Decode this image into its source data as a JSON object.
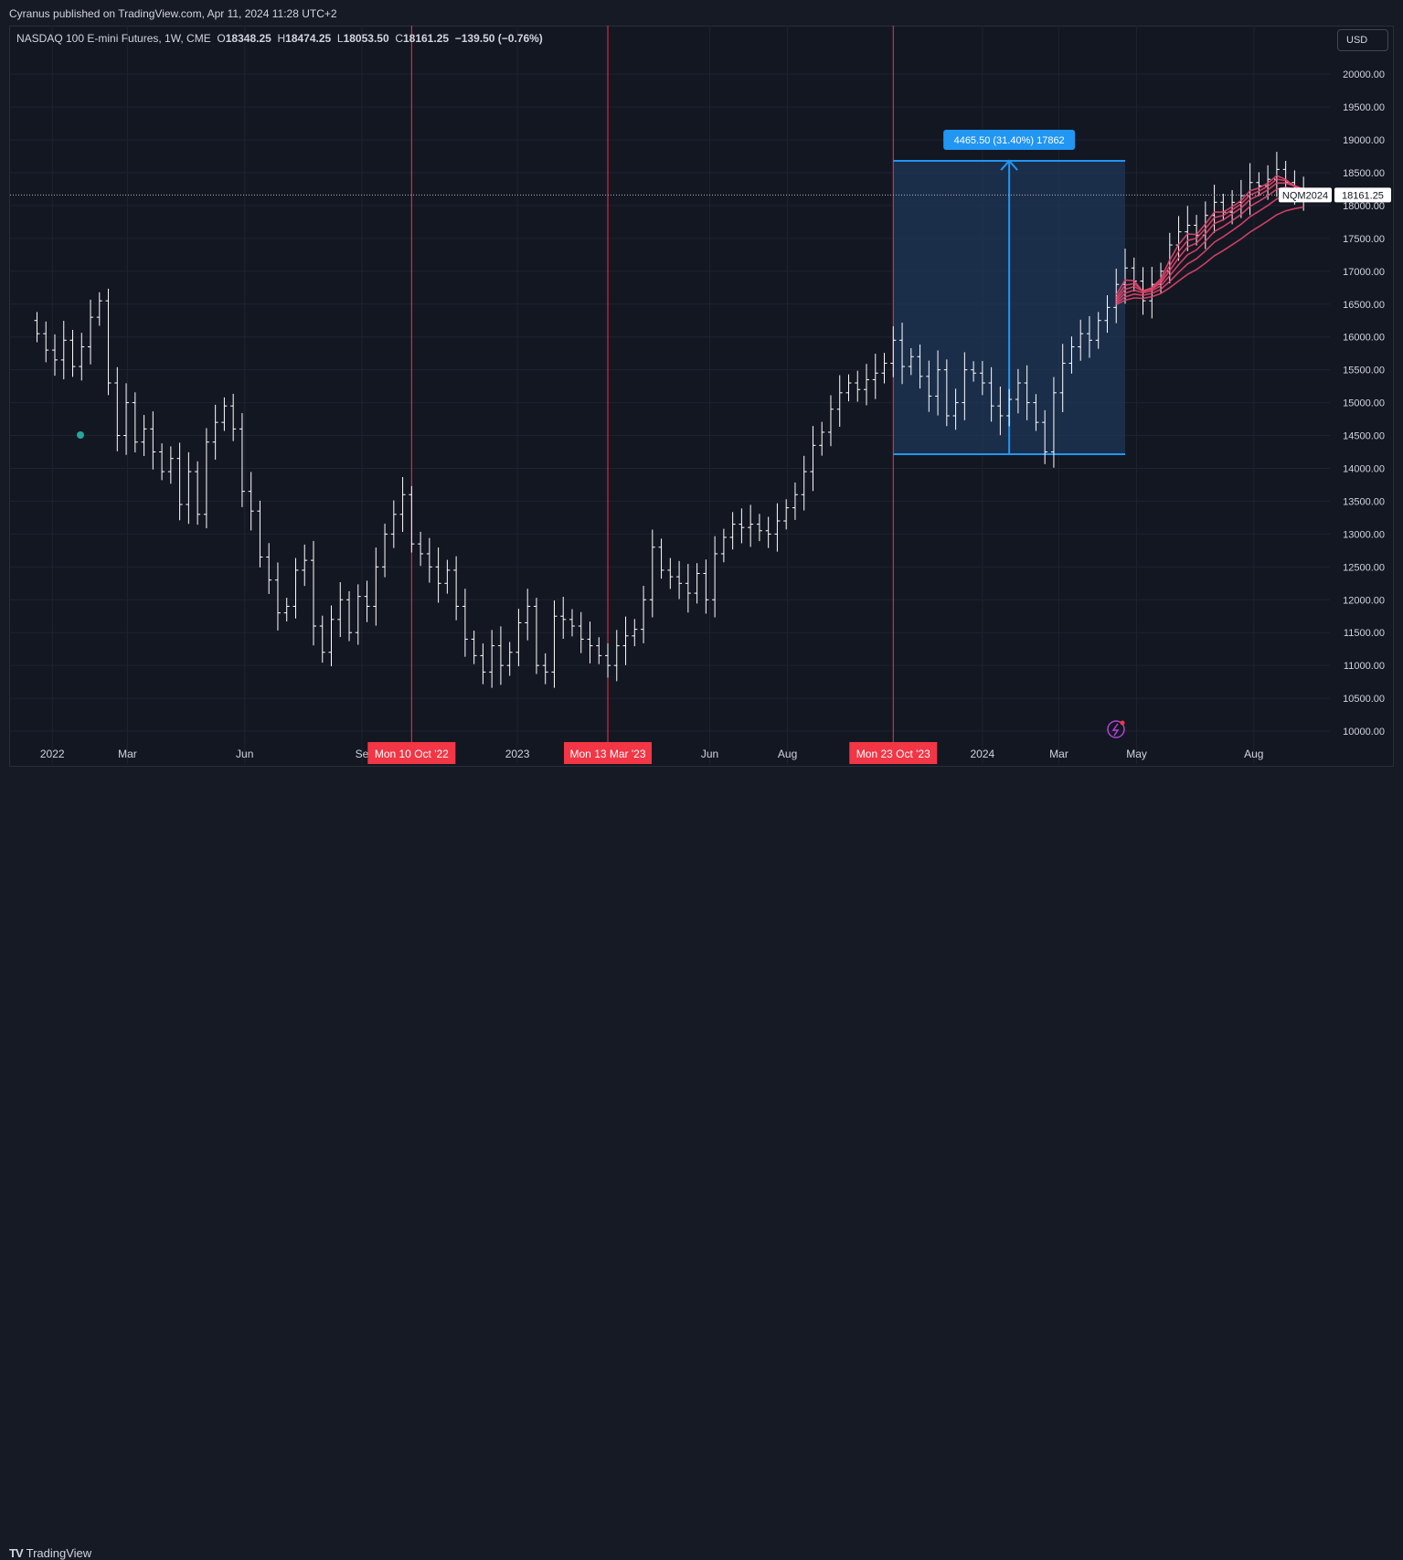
{
  "publish_line": "Cyranus published on TradingView.com, Apr 11, 2024 11:28 UTC+2",
  "legend": {
    "symbol": "NASDAQ 100 E-mini Futures, 1W, CME",
    "o_label": "O",
    "o": "18348.25",
    "h_label": "H",
    "h": "18474.25",
    "l_label": "L",
    "l": "18053.50",
    "c_label": "C",
    "c": "18161.25",
    "change": "−139.50 (−0.76%)"
  },
  "currency": "USD",
  "price_tag": {
    "ticker": "NQM2024",
    "value": "18161.25"
  },
  "measure_label": "4465.50 (31.40%) 17862",
  "brand": "TradingView",
  "colors": {
    "background": "#131722",
    "candle": "#ffffff",
    "vline": "#f23645",
    "measure_fill": "#1e3a5f",
    "measure_line": "#2196f3",
    "ribbon": "#e3456b",
    "grid": "#1f2330"
  },
  "chart_data": {
    "type": "ohlc",
    "interval": "1W",
    "ylim": [
      9500,
      20600
    ],
    "y_ticks": [
      "20000.00",
      "19500.00",
      "19000.00",
      "18500.00",
      "18000.00",
      "17500.00",
      "17000.00",
      "16500.00",
      "16000.00",
      "15500.00",
      "15000.00",
      "14500.00",
      "14000.00",
      "13500.00",
      "13000.00",
      "12500.00",
      "12000.00",
      "11500.00",
      "11000.00",
      "10500.00",
      "10000.00"
    ],
    "x_ticks": [
      {
        "label": "2022",
        "date": "2022-01-01"
      },
      {
        "label": "Mar",
        "date": "2022-03-01"
      },
      {
        "label": "Jun",
        "date": "2022-06-01"
      },
      {
        "label": "Se",
        "date": "2022-09-01"
      },
      {
        "label": "2023",
        "date": "2023-01-01"
      },
      {
        "label": "Jun",
        "date": "2023-06-01"
      },
      {
        "label": "Aug",
        "date": "2023-08-01"
      },
      {
        "label": "2024",
        "date": "2024-01-01"
      },
      {
        "label": "Mar",
        "date": "2024-03-01"
      },
      {
        "label": "May",
        "date": "2024-05-01"
      },
      {
        "label": "Aug",
        "date": "2024-08-01"
      }
    ],
    "vertical_markers": [
      {
        "label": "Mon 10 Oct '22",
        "date": "2022-10-10"
      },
      {
        "label": "Mon 13 Mar '23",
        "date": "2023-03-13"
      },
      {
        "label": "Mon 23 Oct '23",
        "date": "2023-10-23"
      }
    ],
    "last_price": 18161.25,
    "measure": {
      "x_start": "2023-10-23",
      "x_end": "2024-04-22",
      "y_low": 14215,
      "y_high": 18680,
      "change": 4465.5,
      "percent": 31.4,
      "target": 17862
    },
    "closes": [
      16050,
      15800,
      15650,
      15950,
      15550,
      15850,
      16300,
      16550,
      15300,
      14500,
      15000,
      14400,
      14600,
      14250,
      13950,
      14150,
      13450,
      13950,
      13300,
      14400,
      14700,
      14950,
      14600,
      13650,
      13350,
      12650,
      12300,
      11800,
      11900,
      12450,
      12600,
      11600,
      11200,
      11700,
      12000,
      11500,
      12050,
      11900,
      12500,
      13000,
      13300,
      13600,
      12850,
      12700,
      12500,
      12250,
      12450,
      11900,
      11400,
      11150,
      10900,
      11300,
      11000,
      11200,
      11650,
      11900,
      11000,
      10900,
      11750,
      11700,
      11600,
      11400,
      11300,
      11150,
      11000,
      11300,
      11450,
      11550,
      12000,
      12800,
      12450,
      12350,
      12250,
      12100,
      12400,
      12000,
      12700,
      12950,
      13150,
      13100,
      13150,
      13050,
      13000,
      13200,
      13400,
      13600,
      13950,
      14350,
      14550,
      14900,
      15150,
      15300,
      15200,
      15350,
      15450,
      15600,
      15950,
      15550,
      15700,
      15400,
      15100,
      15500,
      14800,
      15000,
      15500,
      15450,
      15300,
      14950,
      14800,
      15050,
      15300,
      15000,
      14700,
      14250,
      15150,
      15600,
      15850,
      16050,
      15950,
      16250,
      16450,
      16800,
      17050,
      16850,
      16550,
      16800,
      17000,
      17400,
      17600,
      17700,
      17550,
      17850,
      18050,
      17900,
      18050,
      18150,
      18350,
      18300,
      18400,
      18550,
      18350,
      18200,
      18161
    ]
  }
}
